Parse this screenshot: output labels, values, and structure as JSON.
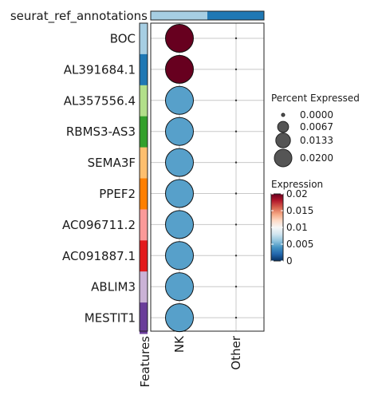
{
  "chart_data": {
    "type": "dotplot",
    "annotation_label": "seurat_ref_annotations",
    "annotation_colors": [
      "#a6cee3",
      "#1f78b4"
    ],
    "features_label": "Features",
    "genes": [
      "BOC",
      "AL391684.1",
      "AL357556.4",
      "RBMS3-AS3",
      "SEMA3F",
      "PPEF2",
      "AC096711.2",
      "AC091887.1",
      "ABLIM3",
      "MESTIT1"
    ],
    "feature_colors": [
      "#a6cee3",
      "#1f78b4",
      "#b2df8a",
      "#33a02c",
      "#fdbf6f",
      "#ff7f00",
      "#fb9a99",
      "#e31a1c",
      "#cab2d6",
      "#6a3d9a"
    ],
    "groups": [
      "NK",
      "Other"
    ],
    "percent_expressed": [
      [
        0.02,
        0
      ],
      [
        0.02,
        0
      ],
      [
        0.02,
        0
      ],
      [
        0.02,
        0
      ],
      [
        0.02,
        0
      ],
      [
        0.02,
        0
      ],
      [
        0.02,
        0
      ],
      [
        0.02,
        0
      ],
      [
        0.02,
        0
      ],
      [
        0.02,
        0
      ]
    ],
    "expression": [
      [
        0.02,
        0
      ],
      [
        0.02,
        0
      ],
      [
        0.0045,
        0
      ],
      [
        0.0045,
        0
      ],
      [
        0.0045,
        0
      ],
      [
        0.0045,
        0
      ],
      [
        0.0045,
        0
      ],
      [
        0.0045,
        0
      ],
      [
        0.0045,
        0
      ],
      [
        0.0045,
        0
      ]
    ],
    "size_legend": {
      "title": "Percent Expressed",
      "values": [
        0.0,
        0.0067,
        0.0133,
        0.02
      ],
      "labels": [
        "0.0000",
        "0.0067",
        "0.0133",
        "0.0200"
      ]
    },
    "color_legend": {
      "title": "Expression",
      "range": [
        0,
        0.02
      ],
      "ticks": [
        0,
        0.005,
        0.01,
        0.015,
        0.02
      ],
      "tick_labels": [
        "0",
        "0.005",
        "0.01",
        "0.015",
        "0.02"
      ],
      "colors": [
        "#053061",
        "#2166ac",
        "#4393c3",
        "#92c5de",
        "#d1e5f0",
        "#f7f7f7",
        "#fddbc7",
        "#f4a582",
        "#d6604d",
        "#b2182b",
        "#67001f"
      ]
    },
    "grid": true
  }
}
